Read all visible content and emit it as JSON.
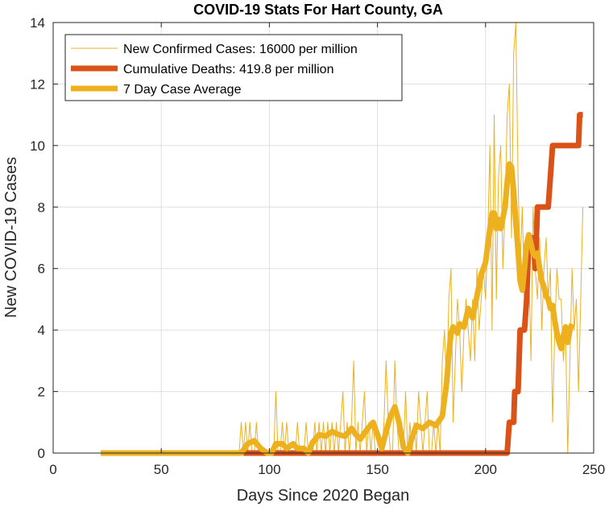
{
  "chart_data": {
    "type": "line",
    "title": "COVID-19 Stats For Hart County, GA",
    "xlabel": "Days Since 2020 Began",
    "ylabel": "New COVID-19 Cases",
    "xlim": [
      0,
      250
    ],
    "ylim": [
      0,
      14
    ],
    "xticks": [
      0,
      50,
      100,
      150,
      200,
      250
    ],
    "yticks": [
      0,
      2,
      4,
      6,
      8,
      10,
      12,
      14
    ],
    "grid": true,
    "legend_position": "top-left",
    "series": [
      {
        "name": "New Confirmed Cases: 16000 per million",
        "color": "#EDB120",
        "style": "thin",
        "points": [
          [
            22,
            0
          ],
          [
            86,
            0
          ],
          [
            87,
            1
          ],
          [
            88,
            0
          ],
          [
            89,
            1
          ],
          [
            90,
            0
          ],
          [
            91,
            1
          ],
          [
            92,
            0
          ],
          [
            93,
            0
          ],
          [
            94,
            1
          ],
          [
            95,
            0
          ],
          [
            96,
            0
          ],
          [
            97,
            0
          ],
          [
            98,
            0
          ],
          [
            99,
            0
          ],
          [
            100,
            0
          ],
          [
            101,
            0
          ],
          [
            102,
            0
          ],
          [
            103,
            2
          ],
          [
            104,
            0
          ],
          [
            105,
            0
          ],
          [
            106,
            1
          ],
          [
            107,
            0
          ],
          [
            108,
            1
          ],
          [
            109,
            0
          ],
          [
            110,
            0
          ],
          [
            111,
            0
          ],
          [
            112,
            0
          ],
          [
            113,
            1
          ],
          [
            114,
            0
          ],
          [
            115,
            0
          ],
          [
            116,
            0
          ],
          [
            117,
            1
          ],
          [
            118,
            0
          ],
          [
            119,
            0
          ],
          [
            120,
            0
          ],
          [
            121,
            1
          ],
          [
            122,
            0
          ],
          [
            123,
            1
          ],
          [
            124,
            0
          ],
          [
            125,
            1
          ],
          [
            126,
            0
          ],
          [
            127,
            1
          ],
          [
            128,
            0
          ],
          [
            129,
            1
          ],
          [
            130,
            0
          ],
          [
            131,
            1
          ],
          [
            132,
            0
          ],
          [
            133,
            1
          ],
          [
            134,
            2
          ],
          [
            135,
            0
          ],
          [
            136,
            1
          ],
          [
            137,
            0
          ],
          [
            138,
            1
          ],
          [
            139,
            3
          ],
          [
            140,
            0
          ],
          [
            141,
            1
          ],
          [
            142,
            0
          ],
          [
            143,
            1
          ],
          [
            144,
            2
          ],
          [
            145,
            0
          ],
          [
            146,
            1
          ],
          [
            147,
            0
          ],
          [
            148,
            1
          ],
          [
            149,
            0
          ],
          [
            150,
            0
          ],
          [
            151,
            0
          ],
          [
            152,
            0
          ],
          [
            153,
            1
          ],
          [
            154,
            3
          ],
          [
            155,
            1
          ],
          [
            156,
            0
          ],
          [
            157,
            0
          ],
          [
            158,
            3
          ],
          [
            159,
            1
          ],
          [
            160,
            0
          ],
          [
            161,
            0
          ],
          [
            162,
            0
          ],
          [
            163,
            2
          ],
          [
            164,
            0
          ],
          [
            165,
            1
          ],
          [
            166,
            0
          ],
          [
            167,
            1
          ],
          [
            168,
            0
          ],
          [
            169,
            2
          ],
          [
            170,
            1
          ],
          [
            171,
            0
          ],
          [
            172,
            1
          ],
          [
            173,
            2
          ],
          [
            174,
            0
          ],
          [
            175,
            0
          ],
          [
            176,
            1
          ],
          [
            177,
            0
          ],
          [
            178,
            1
          ],
          [
            179,
            0
          ],
          [
            180,
            3
          ],
          [
            181,
            4
          ],
          [
            182,
            2
          ],
          [
            183,
            5
          ],
          [
            184,
            6
          ],
          [
            185,
            1
          ],
          [
            186,
            3
          ],
          [
            187,
            5
          ],
          [
            188,
            4
          ],
          [
            189,
            2
          ],
          [
            190,
            4
          ],
          [
            191,
            5
          ],
          [
            192,
            4
          ],
          [
            193,
            3
          ],
          [
            194,
            5
          ],
          [
            195,
            3
          ],
          [
            196,
            6
          ],
          [
            197,
            4
          ],
          [
            198,
            5
          ],
          [
            199,
            6
          ],
          [
            200,
            5
          ],
          [
            201,
            7
          ],
          [
            202,
            10
          ],
          [
            203,
            4
          ],
          [
            204,
            11
          ],
          [
            205,
            5
          ],
          [
            206,
            9
          ],
          [
            207,
            10
          ],
          [
            208,
            6
          ],
          [
            209,
            8
          ],
          [
            210,
            11
          ],
          [
            211,
            12
          ],
          [
            212,
            7
          ],
          [
            213,
            13
          ],
          [
            214,
            14
          ],
          [
            215,
            9
          ],
          [
            216,
            6
          ],
          [
            217,
            8
          ],
          [
            218,
            5
          ],
          [
            219,
            7
          ],
          [
            220,
            6
          ],
          [
            221,
            3
          ],
          [
            222,
            8
          ],
          [
            223,
            6
          ],
          [
            224,
            5
          ],
          [
            225,
            7
          ],
          [
            226,
            4
          ],
          [
            227,
            6
          ],
          [
            228,
            7
          ],
          [
            229,
            5
          ],
          [
            230,
            6
          ],
          [
            231,
            1
          ],
          [
            232,
            4
          ],
          [
            233,
            6
          ],
          [
            234,
            5
          ],
          [
            235,
            5
          ],
          [
            236,
            3
          ],
          [
            237,
            4
          ],
          [
            238,
            0
          ],
          [
            239,
            3
          ],
          [
            240,
            6
          ],
          [
            241,
            4
          ],
          [
            242,
            5
          ],
          [
            243,
            2
          ],
          [
            244,
            5
          ],
          [
            245,
            8
          ]
        ]
      },
      {
        "name": "Cumulative Deaths: 419.8 per million",
        "color": "#D95319",
        "style": "thick",
        "points": [
          [
            88,
            0
          ],
          [
            210,
            0
          ],
          [
            211,
            1
          ],
          [
            213,
            1
          ],
          [
            213.5,
            2
          ],
          [
            215,
            2
          ],
          [
            216,
            4
          ],
          [
            218,
            4
          ],
          [
            219,
            5
          ],
          [
            220,
            7
          ],
          [
            222,
            7
          ],
          [
            223,
            6
          ],
          [
            224,
            8
          ],
          [
            229,
            8
          ],
          [
            230,
            9
          ],
          [
            231,
            10
          ],
          [
            243,
            10
          ],
          [
            243.5,
            11
          ],
          [
            245,
            11
          ]
        ]
      },
      {
        "name": "7 Day Case Average",
        "color": "#EDB120",
        "style": "thick",
        "points": [
          [
            22,
            0
          ],
          [
            87,
            0
          ],
          [
            90,
            0.3
          ],
          [
            93,
            0.4
          ],
          [
            96,
            0.15
          ],
          [
            99,
            0
          ],
          [
            101,
            0
          ],
          [
            103,
            0.3
          ],
          [
            106,
            0.3
          ],
          [
            108,
            0.15
          ],
          [
            111,
            0.3
          ],
          [
            113,
            0.15
          ],
          [
            116,
            0.15
          ],
          [
            118,
            0
          ],
          [
            120,
            0.35
          ],
          [
            123,
            0.6
          ],
          [
            126,
            0.55
          ],
          [
            129,
            0.7
          ],
          [
            132,
            0.6
          ],
          [
            135,
            0.55
          ],
          [
            138,
            0.8
          ],
          [
            140,
            0.6
          ],
          [
            142,
            0.45
          ],
          [
            145,
            0.75
          ],
          [
            148,
            1
          ],
          [
            150,
            0.6
          ],
          [
            152,
            0.15
          ],
          [
            154,
            0.7
          ],
          [
            156,
            1.2
          ],
          [
            158,
            1.5
          ],
          [
            160,
            1.0
          ],
          [
            162,
            0.2
          ],
          [
            164,
            0
          ],
          [
            166,
            0.5
          ],
          [
            168,
            0.9
          ],
          [
            171,
            0.8
          ],
          [
            174,
            1.0
          ],
          [
            177,
            0.9
          ],
          [
            180,
            1.2
          ],
          [
            182,
            2.3
          ],
          [
            183,
            3.2
          ],
          [
            184,
            3.9
          ],
          [
            185,
            4.1
          ],
          [
            187,
            3.9
          ],
          [
            188,
            4.2
          ],
          [
            190,
            4.1
          ],
          [
            192,
            4.7
          ],
          [
            194,
            4.4
          ],
          [
            196,
            5.1
          ],
          [
            198,
            5.8
          ],
          [
            200,
            6.2
          ],
          [
            202,
            7.3
          ],
          [
            203,
            7.8
          ],
          [
            204,
            7.8
          ],
          [
            205,
            7.3
          ],
          [
            206,
            7.6
          ],
          [
            207,
            7.3
          ],
          [
            209,
            8.0
          ],
          [
            210,
            8.8
          ],
          [
            211,
            9.4
          ],
          [
            212,
            9.3
          ],
          [
            213,
            8.5
          ],
          [
            214,
            7.5
          ],
          [
            215,
            6.6
          ],
          [
            216,
            5.6
          ],
          [
            217,
            5.3
          ],
          [
            218,
            6.0
          ],
          [
            219,
            6.8
          ],
          [
            220,
            7.1
          ],
          [
            221,
            6.8
          ],
          [
            222,
            6.5
          ],
          [
            223,
            6.4
          ],
          [
            224,
            6.5
          ],
          [
            225,
            6.0
          ],
          [
            226,
            5.6
          ],
          [
            227,
            5.4
          ],
          [
            228,
            5.1
          ],
          [
            229,
            5.0
          ],
          [
            230,
            4.7
          ],
          [
            231,
            4.8
          ],
          [
            232,
            4.3
          ],
          [
            233,
            3.9
          ],
          [
            234,
            3.6
          ],
          [
            235,
            3.4
          ],
          [
            236,
            3.8
          ],
          [
            237,
            4.1
          ],
          [
            238,
            3.6
          ],
          [
            239,
            4.0
          ],
          [
            240,
            4.2
          ]
        ]
      }
    ]
  }
}
